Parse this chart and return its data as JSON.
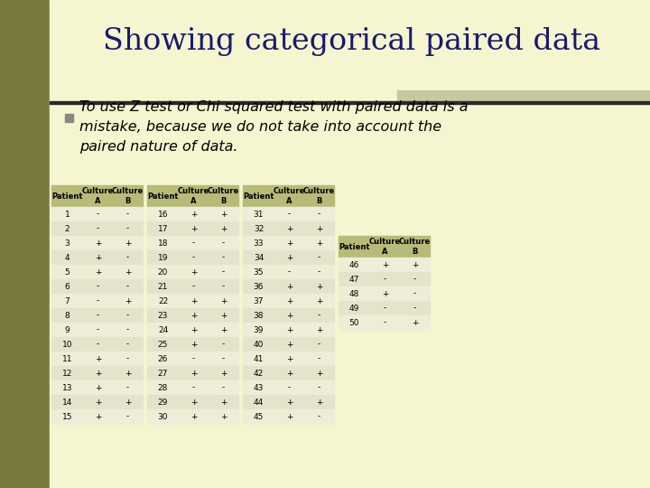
{
  "title": "Showing categorical paired data",
  "bullet_text_line1": "To use Z test or Chi squared test with paired data is a",
  "bullet_text_line2": "mistake, because we do not take into account the",
  "bullet_text_line3": "paired nature of data.",
  "bg_color": "#f5f5d0",
  "left_bar_color": "#7a7a40",
  "title_color": "#1a1a6e",
  "header_bg": "#b8bb78",
  "row_bg_even": "#eeeed8",
  "row_bg_odd": "#e4e4cc",
  "header_line_color": "#2a2a2a",
  "bullet_color": "#888888",
  "highlight_bar_color": "#c8c8a0",
  "columns": [
    "Patient",
    "Culture\nA",
    "Culture\nB"
  ],
  "table1": [
    [
      "1",
      "-",
      "-"
    ],
    [
      "2",
      "-",
      "-"
    ],
    [
      "3",
      "+",
      "+"
    ],
    [
      "4",
      "+",
      "-"
    ],
    [
      "5",
      "+",
      "+"
    ],
    [
      "6",
      "-",
      "-"
    ],
    [
      "7",
      "-",
      "+"
    ],
    [
      "8",
      "-",
      "-"
    ],
    [
      "9",
      "-",
      "-"
    ],
    [
      "10",
      "-",
      "-"
    ],
    [
      "11",
      "+",
      "-"
    ],
    [
      "12",
      "+",
      "+"
    ],
    [
      "13",
      "+",
      "-"
    ],
    [
      "14",
      "+",
      "+"
    ],
    [
      "15",
      "+",
      "-"
    ]
  ],
  "table2": [
    [
      "16",
      "+",
      "+"
    ],
    [
      "17",
      "+",
      "+"
    ],
    [
      "18",
      "-",
      "-"
    ],
    [
      "19",
      "-",
      "-"
    ],
    [
      "20",
      "+",
      "-"
    ],
    [
      "21",
      "-",
      "-"
    ],
    [
      "22",
      "+",
      "+"
    ],
    [
      "23",
      "+",
      "+"
    ],
    [
      "24",
      "+",
      "+"
    ],
    [
      "25",
      "+",
      "-"
    ],
    [
      "26",
      "-",
      "-"
    ],
    [
      "27",
      "+",
      "+"
    ],
    [
      "28",
      "-",
      "-"
    ],
    [
      "29",
      "+",
      "+"
    ],
    [
      "30",
      "+",
      "+"
    ]
  ],
  "table3": [
    [
      "31",
      "-",
      "-"
    ],
    [
      "32",
      "+",
      "+"
    ],
    [
      "33",
      "+",
      "+"
    ],
    [
      "34",
      "+",
      "-"
    ],
    [
      "35",
      "-",
      "-"
    ],
    [
      "36",
      "+",
      "+"
    ],
    [
      "37",
      "+",
      "+"
    ],
    [
      "38",
      "+",
      "-"
    ],
    [
      "39",
      "+",
      "+"
    ],
    [
      "40",
      "+",
      "-"
    ],
    [
      "41",
      "+",
      "-"
    ],
    [
      "42",
      "+",
      "+"
    ],
    [
      "43",
      "-",
      "-"
    ],
    [
      "44",
      "+",
      "+"
    ],
    [
      "45",
      "+",
      "-"
    ]
  ],
  "table4": [
    [
      "46",
      "+",
      "+"
    ],
    [
      "47",
      "-",
      "-"
    ],
    [
      "48",
      "+",
      "-"
    ],
    [
      "49",
      "-",
      "-"
    ],
    [
      "50",
      "-",
      "+"
    ]
  ]
}
